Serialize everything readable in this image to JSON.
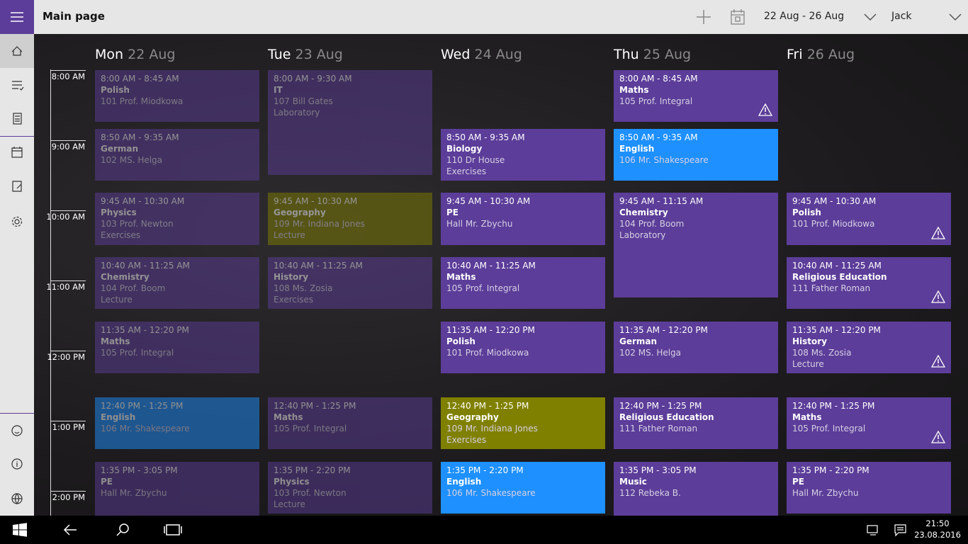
{
  "header": {
    "title": "Main page",
    "date_range": "22 Aug - 26 Aug",
    "user": "Jack"
  },
  "time_labels": [
    "8:00 AM",
    "9:00 AM",
    "10:00 AM",
    "11:00 AM",
    "12:00 PM",
    "1:00 PM",
    "2:00 PM"
  ],
  "days": [
    {
      "name": "Mon",
      "date": "22 Aug",
      "past": true,
      "events": [
        {
          "time": "8:00 AM - 8:45 AM",
          "subject": "Polish",
          "room": "101 Prof. Miodkowa",
          "color": "#5c3d99"
        },
        {
          "time": "8:50 AM - 9:35 AM",
          "subject": "German",
          "room": "102 MS. Helga",
          "color": "#5c3d99"
        },
        {
          "time": "9:45 AM - 10:30 AM",
          "subject": "Physics",
          "room": "103 Prof. Newton",
          "kind": "Exercises",
          "color": "#5c3d99"
        },
        {
          "time": "10:40 AM - 11:25 AM",
          "subject": "Chemistry",
          "room": "104 Prof. Boom",
          "kind": "Lecture",
          "color": "#5c3d99"
        },
        {
          "time": "11:35 AM - 12:20 PM",
          "subject": "Maths",
          "room": "105 Prof. Integral",
          "color": "#5c3d99"
        },
        {
          "time": "12:40 PM - 1:25 PM",
          "subject": "English",
          "room": "106 Mr. Shakespeare",
          "color": "#1e90ff"
        },
        {
          "time": "1:35 PM - 3:05 PM",
          "subject": "PE",
          "room": "Hall Mr. Zbychu",
          "color": "#5c3d99"
        }
      ]
    },
    {
      "name": "Tue",
      "date": "23 Aug",
      "past": true,
      "events": [
        {
          "time": "8:00 AM - 9:30 AM",
          "subject": "IT",
          "room": "107 Bill Gates",
          "kind": "Laboratory",
          "color": "#5c3d99"
        },
        {
          "time": "9:45 AM - 10:30 AM",
          "subject": "Geography",
          "room": "109 Mr. Indiana Jones",
          "kind": "Lecture",
          "color": "#808000"
        },
        {
          "time": "10:40 AM - 11:25 AM",
          "subject": "History",
          "room": "108 Ms. Zosia",
          "kind": "Exercises",
          "color": "#5c3d99"
        },
        {
          "time": "12:40 PM - 1:25 PM",
          "subject": "Maths",
          "room": "105 Prof. Integral",
          "color": "#5c3d99"
        },
        {
          "time": "1:35 PM - 2:20 PM",
          "subject": "Physics",
          "room": "103 Prof. Newton",
          "kind": "Lecture",
          "color": "#5c3d99"
        }
      ]
    },
    {
      "name": "Wed",
      "date": "24 Aug",
      "events": [
        {
          "time": "8:50 AM - 9:35 AM",
          "subject": "Biology",
          "room": "110 Dr House",
          "kind": "Exercises",
          "color": "#5c3d99"
        },
        {
          "time": "9:45 AM - 10:30 AM",
          "subject": "PE",
          "room": "Hall Mr. Zbychu",
          "color": "#5c3d99"
        },
        {
          "time": "10:40 AM - 11:25 AM",
          "subject": "Maths",
          "room": "105 Prof. Integral",
          "color": "#5c3d99"
        },
        {
          "time": "11:35 AM - 12:20 PM",
          "subject": "Polish",
          "room": "101 Prof. Miodkowa",
          "color": "#5c3d99"
        },
        {
          "time": "12:40 PM - 1:25 PM",
          "subject": "Geography",
          "room": "109 Mr. Indiana Jones",
          "kind": "Exercises",
          "color": "#808000"
        },
        {
          "time": "1:35 PM - 2:20 PM",
          "subject": "English",
          "room": "106 Mr. Shakespeare",
          "color": "#1e90ff"
        }
      ]
    },
    {
      "name": "Thu",
      "date": "25 Aug",
      "events": [
        {
          "time": "8:00 AM - 8:45 AM",
          "subject": "Maths",
          "room": "105 Prof. Integral",
          "color": "#5c3d99",
          "warning": true
        },
        {
          "time": "8:50 AM - 9:35 AM",
          "subject": "English",
          "room": "106 Mr. Shakespeare",
          "color": "#1e90ff"
        },
        {
          "time": "9:45 AM - 11:15 AM",
          "subject": "Chemistry",
          "room": "104 Prof. Boom",
          "kind": "Laboratory",
          "color": "#5c3d99"
        },
        {
          "time": "11:35 AM - 12:20 PM",
          "subject": "German",
          "room": "102 MS. Helga",
          "color": "#5c3d99"
        },
        {
          "time": "12:40 PM - 1:25 PM",
          "subject": "Religious Education",
          "room": "111 Father Roman",
          "color": "#5c3d99"
        },
        {
          "time": "1:35 PM - 3:05 PM",
          "subject": "Music",
          "room": "112 Rebeka B.",
          "color": "#5c3d99"
        }
      ]
    },
    {
      "name": "Fri",
      "date": "26 Aug",
      "events": [
        {
          "time": "9:45 AM - 10:30 AM",
          "subject": "Polish",
          "room": "101 Prof. Miodkowa",
          "color": "#5c3d99",
          "warning": true
        },
        {
          "time": "10:40 AM - 11:25 AM",
          "subject": "Religious Education",
          "room": "111 Father Roman",
          "color": "#5c3d99",
          "warning": true
        },
        {
          "time": "11:35 AM - 12:20 PM",
          "subject": "History",
          "room": "108 Ms. Zosia",
          "kind": "Lecture",
          "color": "#5c3d99",
          "warning": true
        },
        {
          "time": "12:40 PM - 1:25 PM",
          "subject": "Maths",
          "room": "105 Prof. Integral",
          "color": "#5c3d99",
          "warning": true
        },
        {
          "time": "1:35 PM - 2:20 PM",
          "subject": "PE",
          "room": "Hall Mr. Zbychu",
          "color": "#5c3d99"
        }
      ]
    }
  ],
  "taskbar": {
    "time": "21:50",
    "date": "23.08.2016"
  }
}
